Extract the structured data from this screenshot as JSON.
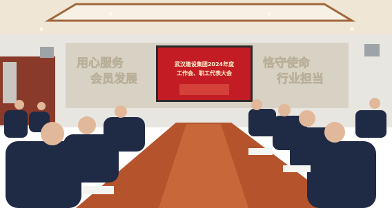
{
  "screen": {
    "line1": "武汉建设集团2024年度",
    "line2": "工作会、职工代表大会"
  },
  "wall_slogans": {
    "left_top": "用心服务",
    "left_bottom": "会员发展",
    "right_top": "恪守使命",
    "right_bottom": "行业担当"
  }
}
